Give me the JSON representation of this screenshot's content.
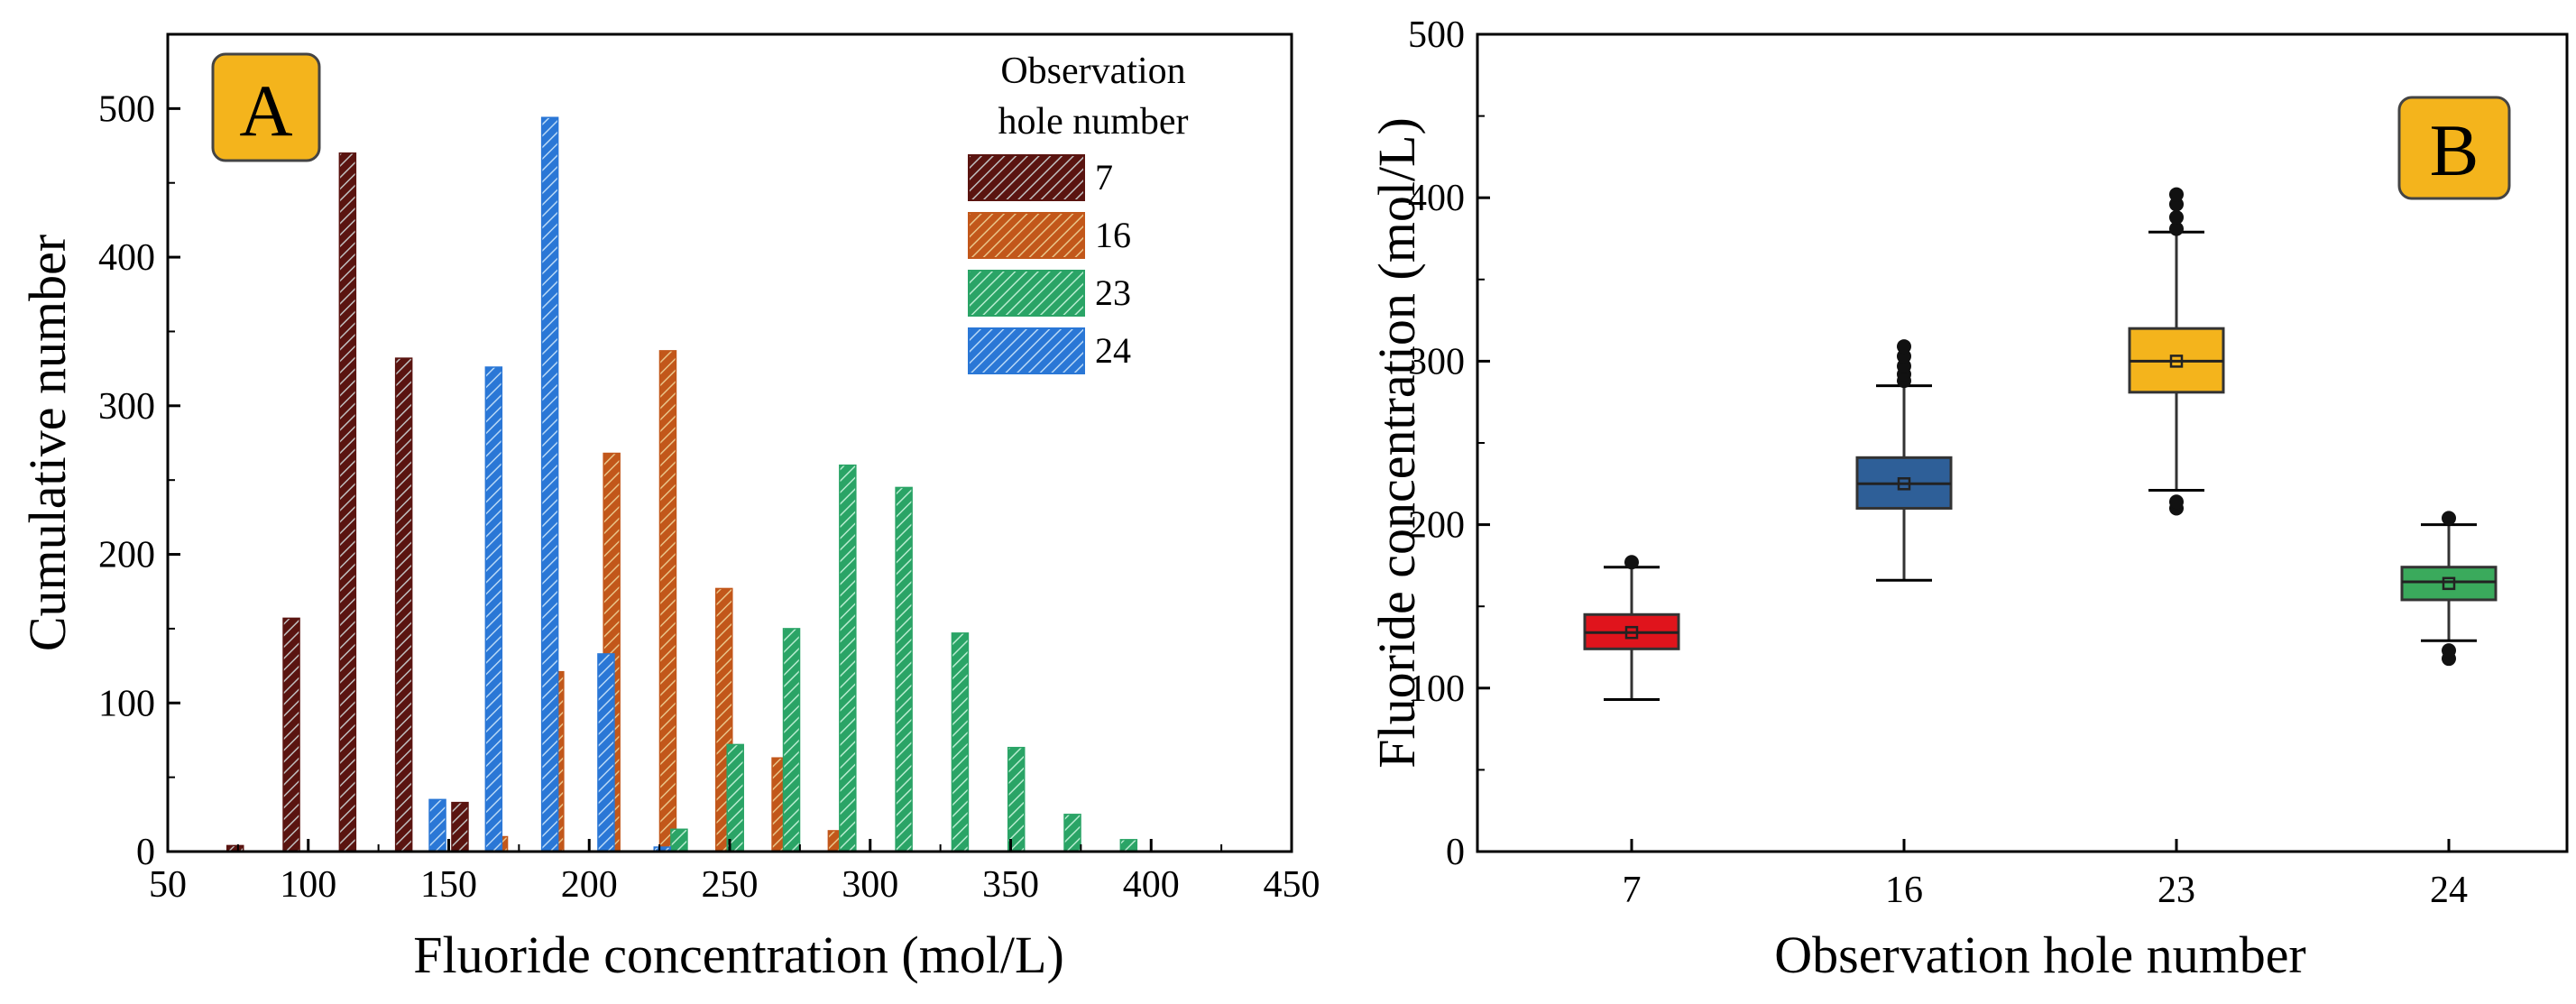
{
  "chart_data": [
    {
      "type": "bar",
      "panel_label": "A",
      "xlabel": "Fluoride concentration (mol/L)",
      "ylabel": "Cumulative number",
      "xlim": [
        50,
        450
      ],
      "ylim": [
        0,
        550
      ],
      "x_ticks": [
        50,
        100,
        150,
        200,
        250,
        300,
        350,
        400,
        450
      ],
      "y_ticks": [
        0,
        100,
        200,
        300,
        400,
        500
      ],
      "x_tick_labels": [
        "50",
        "100",
        "150",
        "200",
        "250",
        "300",
        "350",
        "400",
        "450"
      ],
      "y_tick_labels": [
        "0",
        "100",
        "200",
        "300",
        "400",
        "500"
      ],
      "legend_title": [
        "Observation",
        "hole number"
      ],
      "legend_position": "top-right",
      "bin_width": 20,
      "series": [
        {
          "name": "7",
          "color": "#5a1410",
          "hatch": "#c0c0c0",
          "offset": -6,
          "x": [
            80,
            100,
            120,
            140,
            160
          ],
          "values": [
            4,
            157,
            470,
            332,
            33
          ]
        },
        {
          "name": "16",
          "color": "#c2571a",
          "hatch": "#e9c489",
          "offset": -2,
          "x": [
            170,
            190,
            210,
            230,
            250,
            270,
            290
          ],
          "values": [
            10,
            121,
            268,
            337,
            177,
            63,
            14
          ]
        },
        {
          "name": "23",
          "color": "#2aa466",
          "hatch": "#b8ecd0",
          "offset": 2,
          "x": [
            230,
            250,
            270,
            290,
            310,
            330,
            350,
            370,
            390
          ],
          "values": [
            15,
            72,
            150,
            260,
            245,
            147,
            70,
            25,
            8
          ]
        },
        {
          "name": "24",
          "color": "#2a77d6",
          "hatch": "#b8d8f6",
          "offset": 6,
          "x": [
            140,
            160,
            180,
            200,
            220
          ],
          "values": [
            35,
            326,
            494,
            133,
            3
          ]
        }
      ]
    },
    {
      "type": "box",
      "panel_label": "B",
      "xlabel": "Observation hole number",
      "ylabel": "Fluoride concentration (mol/L)",
      "ylim": [
        0,
        500
      ],
      "y_ticks": [
        0,
        100,
        200,
        300,
        400,
        500
      ],
      "y_tick_labels": [
        "0",
        "100",
        "200",
        "300",
        "400",
        "500"
      ],
      "categories": [
        "7",
        "16",
        "23",
        "24"
      ],
      "boxes": [
        {
          "name": "7",
          "color": "#e0141c",
          "whisker_low": 93,
          "q1": 124,
          "median": 134,
          "mean": 134,
          "q3": 145,
          "whisker_high": 174,
          "outliers": [
            177
          ]
        },
        {
          "name": "16",
          "color": "#2e5f98",
          "whisker_low": 166,
          "q1": 210,
          "median": 225,
          "mean": 225,
          "q3": 241,
          "whisker_high": 285,
          "outliers": [
            288,
            292,
            297,
            303,
            309
          ]
        },
        {
          "name": "23",
          "color": "#f4b41c",
          "whisker_low": 221,
          "q1": 281,
          "median": 300,
          "mean": 300,
          "q3": 320,
          "whisker_high": 379,
          "outliers": [
            210,
            214,
            381,
            388,
            396,
            402
          ]
        },
        {
          "name": "24",
          "color": "#3aaa5c",
          "whisker_low": 129,
          "q1": 154,
          "median": 165,
          "mean": 164,
          "q3": 174,
          "whisker_high": 200,
          "outliers": [
            118,
            123,
            204
          ]
        }
      ]
    }
  ]
}
